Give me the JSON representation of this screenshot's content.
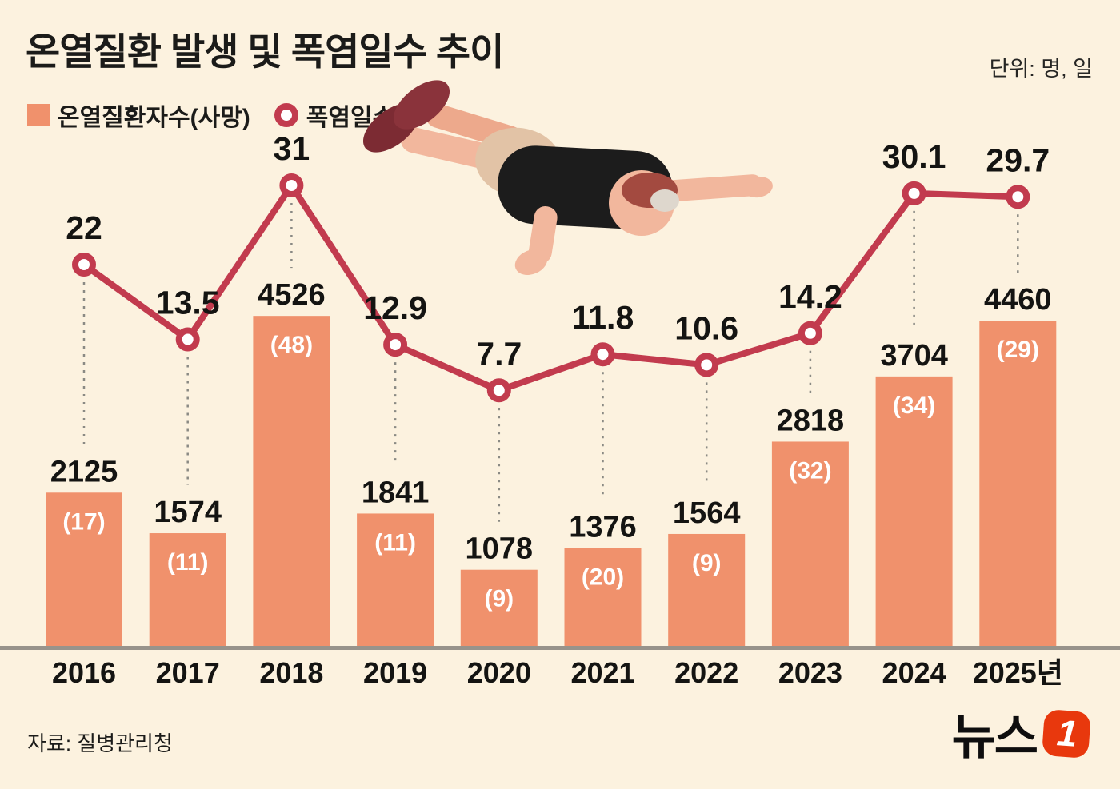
{
  "header": {
    "title": "온열질환 발생 및 폭염일수 추이",
    "unit": "단위: 명, 일"
  },
  "legend": {
    "bar_label": "온열질환자수(사망)",
    "line_label": "폭염일수"
  },
  "footer": {
    "source": "자료: 질병관리청",
    "logo_text": "뉴스",
    "logo_mark": "1"
  },
  "colors": {
    "background": "#fcf2df",
    "bar": "#f0916c",
    "line": "#c23b4e",
    "marker_fill": "#ffffff",
    "axis": "#98938b",
    "text": "#141412",
    "death_label": "#ffffff",
    "connector": "#8a8a84",
    "logo_red": "#e8380d"
  },
  "chart_data": {
    "type": "bar+line",
    "title": "온열질환 발생 및 폭염일수 추이",
    "units": "명, 일",
    "categories": [
      "2016",
      "2017",
      "2018",
      "2019",
      "2020",
      "2021",
      "2022",
      "2023",
      "2024",
      "2025년"
    ],
    "series": [
      {
        "name": "온열질환자수(사망)",
        "type": "bar",
        "values": [
          2125,
          1574,
          4526,
          1841,
          1078,
          1376,
          1564,
          2818,
          3704,
          4460
        ],
        "deaths": [
          17,
          11,
          48,
          11,
          9,
          20,
          9,
          32,
          34,
          29
        ]
      },
      {
        "name": "폭염일수",
        "type": "line",
        "values": [
          22,
          13.5,
          31,
          12.9,
          7.7,
          11.8,
          10.6,
          14.2,
          30.1,
          29.7
        ]
      }
    ],
    "legend_position": "top-left",
    "grid": false
  }
}
